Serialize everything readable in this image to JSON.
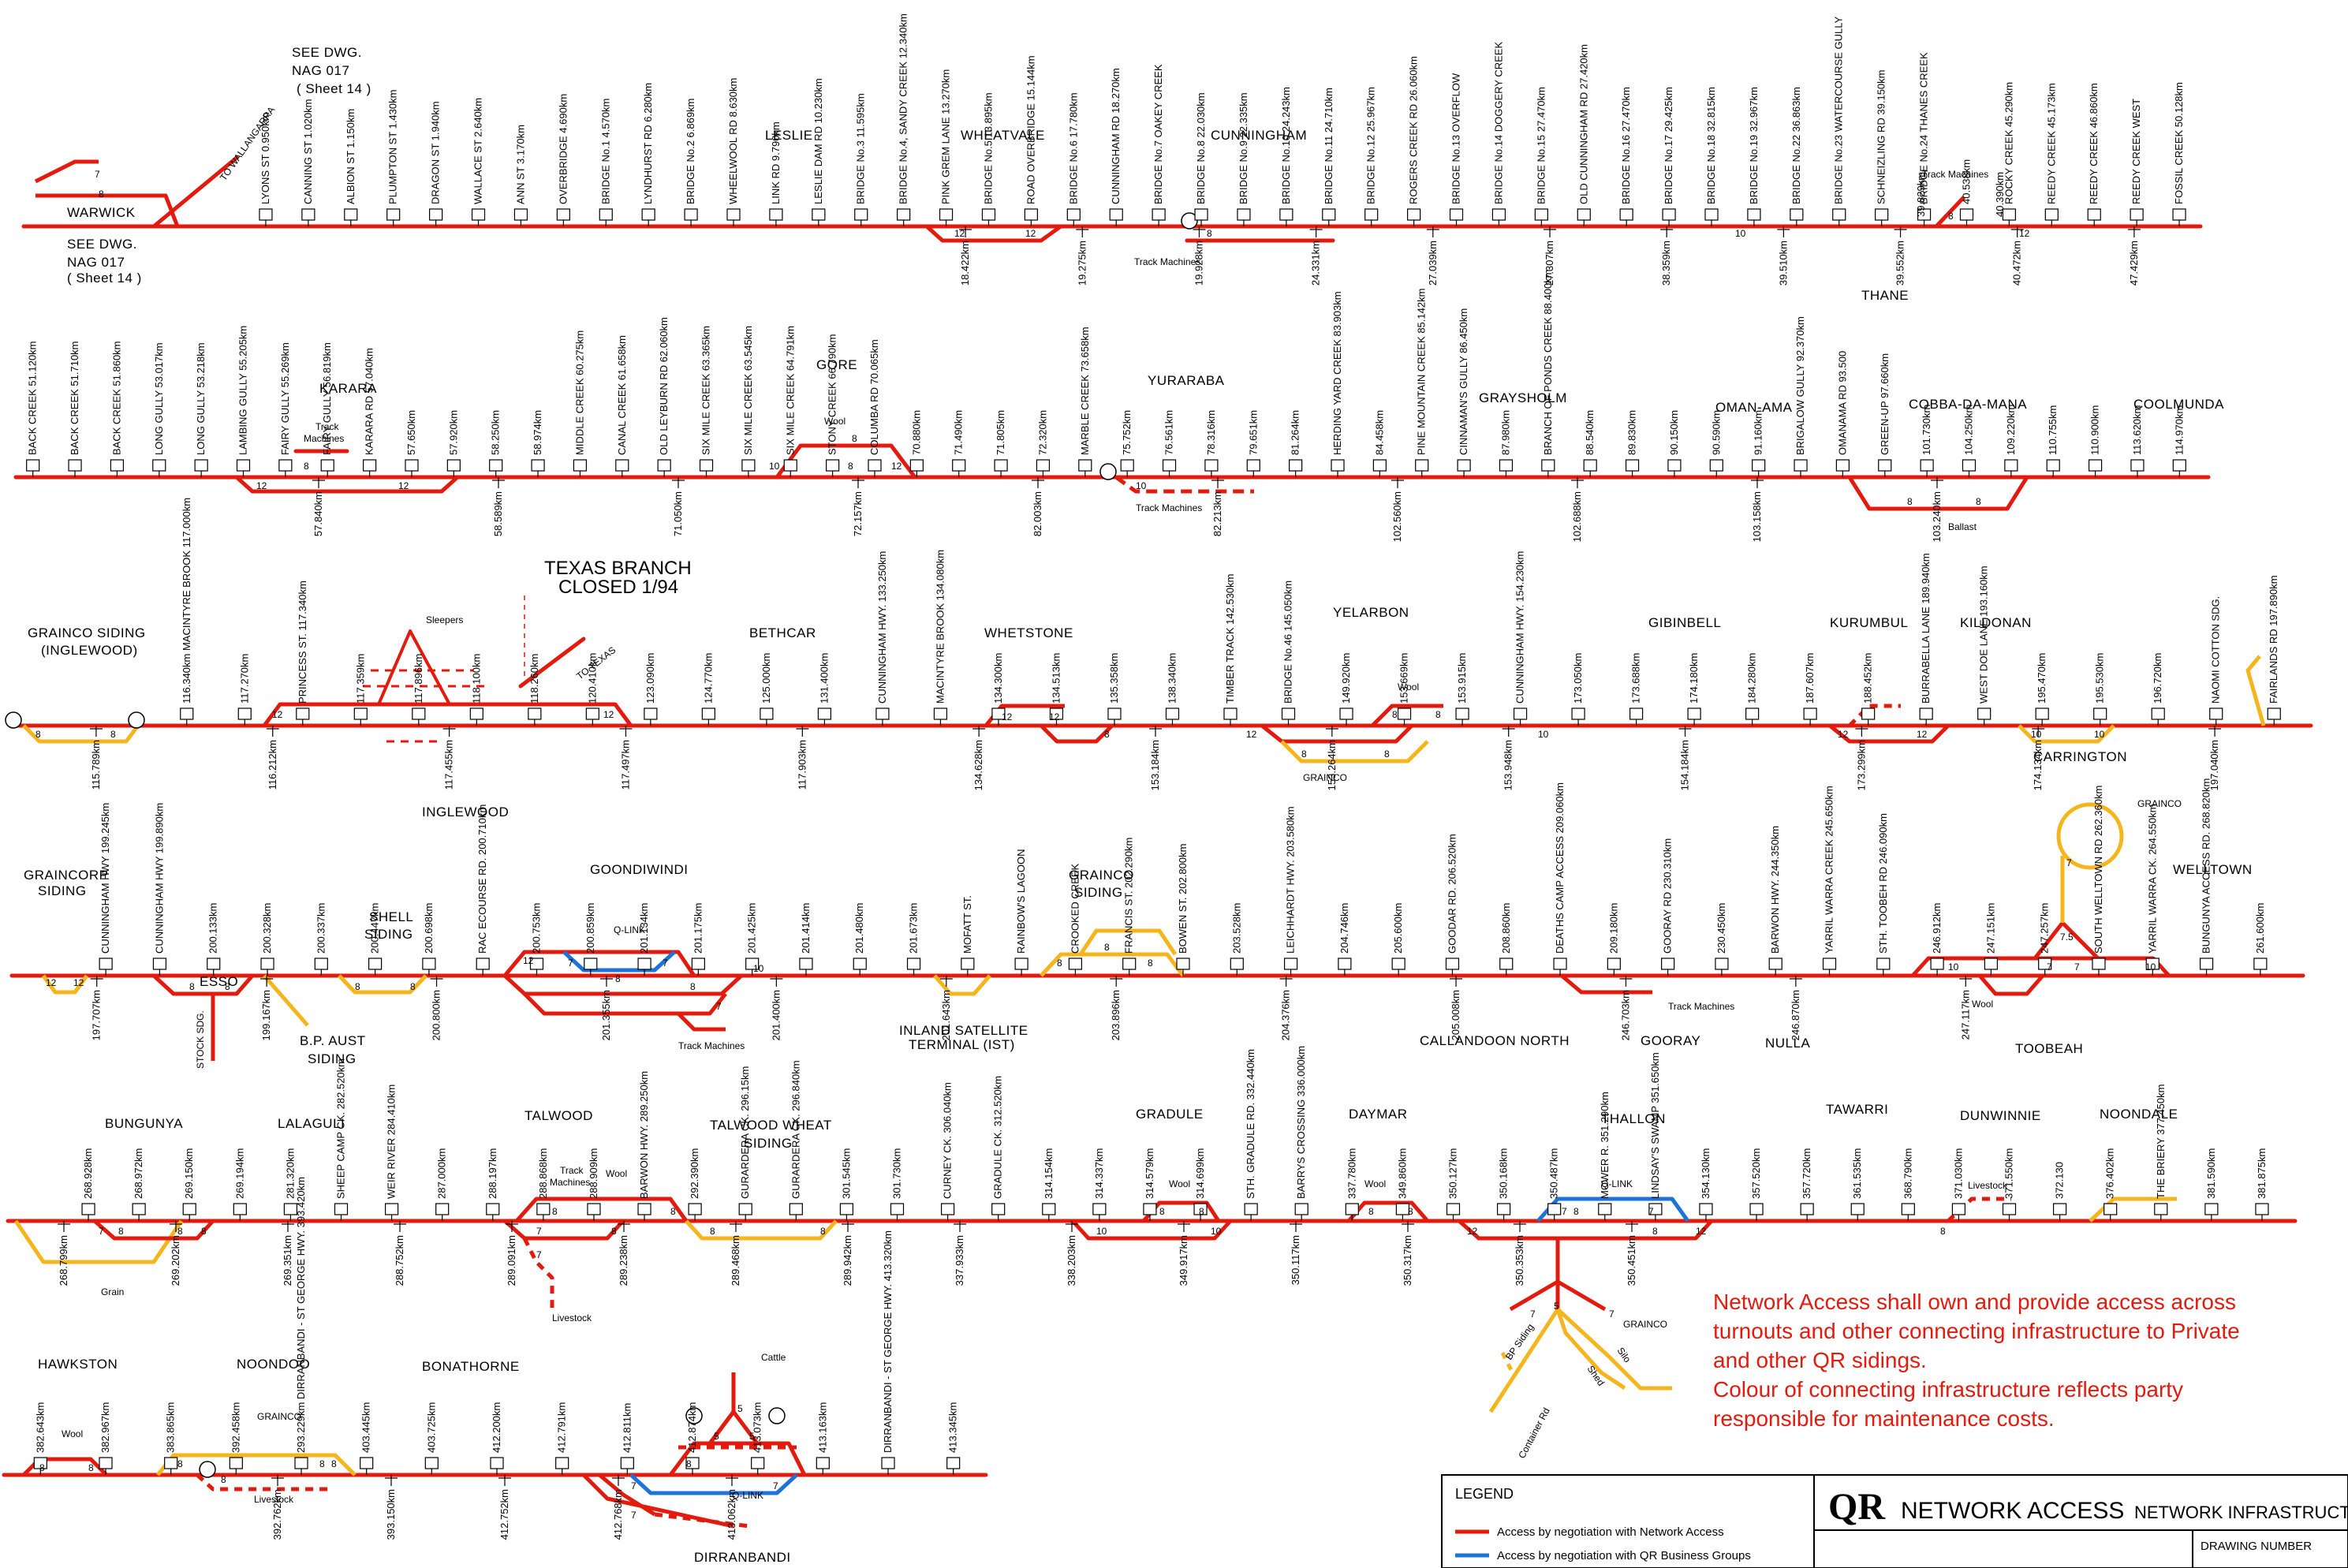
{
  "colors": {
    "network_access": "#e31b0e",
    "qr_business": "#1e73d8",
    "private": "#f5b51c"
  },
  "refs": {
    "see_dwg_top_1": "SEE DWG.",
    "see_dwg_top_2": "NAG 017",
    "see_dwg_top_3": "( Sheet 14 )",
    "see_dwg_bot_1": "SEE DWG.",
    "see_dwg_bot_2": "NAG 017",
    "see_dwg_bot_3": "( Sheet 14 )",
    "to_wallangarra": "TO WALLANGARRA",
    "texas_branch_1": "TEXAS BRANCH",
    "texas_branch_2": "CLOSED 1/94",
    "to_texas": "TO TEXAS"
  },
  "note": {
    "line1": "Network Access shall own and provide access across",
    "line2": "turnouts and other connecting infrastructure to Private",
    "line3": "and other QR sidings.",
    "line4": "Colour of connecting infrastructure reflects party",
    "line5": "responsible for maintenance costs."
  },
  "legend": {
    "title": "LEGEND",
    "item1": "Access by negotiation with Network Access",
    "item2": "Access by negotiation with QR Business Groups"
  },
  "title_block": {
    "qr": "QR",
    "network_access": "NETWORK ACCESS",
    "network_infrastructure": "NETWORK INFRASTRUCTURE",
    "drawing_number": "DRAWING NUMBER"
  },
  "row1": {
    "stations": {
      "warwick": "WARWICK",
      "leslie": "LESLIE",
      "wheatvale": "WHEATVALE",
      "cunningham": "CUNNINGHAM",
      "thane": "THANE"
    },
    "misc": {
      "track_machines_1": "Track Machines",
      "track_machines_2": "Track Machines"
    },
    "features": [
      "LYONS ST 0.950km",
      "CANNING ST 1.020km",
      "ALBION ST 1.150km",
      "PLUMPTON ST 1.430km",
      "DRAGON ST 1.940km",
      "WALLACE ST 2.640km",
      "ANN ST 3.170km",
      "OVERBRIDGE 4.690km",
      "BRIDGE No.1 4.570km",
      "LYNDHURST RD 6.280km",
      "BRIDGE No.2 6.869km",
      "WHEELWOOL RD 8.630km",
      "LINK RD 9.790km",
      "LESLIE DAM RD 10.230km",
      "BRIDGE No.3 11.595km",
      "BRIDGE No.4, SANDY CREEK 12.340km",
      "PINK GREM LANE 13.270km",
      "BRIDGE No.5 13.895km",
      "ROAD OVERBRIDGE 15.144km",
      "BRIDGE No.6 17.780km",
      "CUNNINGHAM RD 18.270km",
      "BRIDGE No.7 OAKEY CREEK",
      "BRIDGE No.8 22.030km",
      "BRIDGE No.9 22.335km",
      "BRIDGE No.10 24.243km",
      "BRIDGE No.11 24.710km",
      "BRIDGE No.12 25.967km",
      "ROGERS CREEK RD 26.060km",
      "BRIDGE No.13 OVERFLOW",
      "BRIDGE No.14 DOGGERY CREEK",
      "BRIDGE No.15 27.470km",
      "OLD CUNNINGHAM RD 27.420km",
      "BRIDGE No.16 27.470km",
      "BRIDGE No.17 29.425km",
      "BRIDGE No.18 32.815km",
      "BRIDGE No.19 32.967km",
      "BRIDGE No.22 36.863km",
      "BRIDGE No.23 WATERCOURSE GULLY",
      "SCHNEIZLING RD 39.150km",
      "BRIDGE No.24 THANES CREEK",
      "40.538km",
      "ROCKY CREEK 45.290km",
      "REEDY CREEK 45.173km",
      "REEDY CREEK 46.860km",
      "REEDY CREEK WEST",
      "FOSSIL CREEK 50.128km"
    ],
    "below": [
      "18.422km",
      "19.275km",
      "19.928km",
      "24.331km",
      "27.039km",
      "27.307km",
      "38.359km",
      "39.510km",
      "39.552km",
      "40.472km",
      "47.429km"
    ],
    "extra_above": [
      "39.829km",
      "40.390km"
    ]
  },
  "row2": {
    "stations": {
      "karara": "KARARA",
      "gore": "GORE",
      "yuraraba": "YURARABA",
      "graysholm": "GRAYSHOLM",
      "oman_ama": "OMAN-AMA",
      "cobba_da_mana": "COBBA-DA-MANA",
      "coolmunda": "COOLMUNDA"
    },
    "misc": {
      "track_machines_a": "Track",
      "track_machines_b": "Machines",
      "wool": "Wool",
      "track_machines_c": "Track Machines",
      "ballast": "Ballast"
    },
    "features": [
      "BACK CREEK 51.120km",
      "BACK CREEK 51.710km",
      "BACK CREEK 51.860km",
      "LONG GULLY 53.017km",
      "LONG GULLY 53.218km",
      "LAMBING GULLY 55.205km",
      "FAIRY GULLY 55.269km",
      "FAIRY GULLY 56.819km",
      "KARARA RD 57.040km",
      "57.650km",
      "57.920km",
      "58.250km",
      "58.974km",
      "MIDDLE CREEK 60.275km",
      "CANAL CREEK 61.658km",
      "OLD LEYBURN RD 62.060km",
      "SIX MILE CREEK 63.365km",
      "SIX MILE CREEK 63.545km",
      "SIX MILE CREEK 64.791km",
      "STONY CREEK 66.790km",
      "COLUMBA RD 70.065km",
      "70.880km",
      "71.490km",
      "71.805km",
      "72.320km",
      "MARBLE CREEK 73.658km",
      "75.752km",
      "76.561km",
      "78.316km",
      "79.651km",
      "81.264km",
      "HERDING YARD CREEK 83.903km",
      "84.458km",
      "PINE MOUNTAIN CREEK 85.142km",
      "CINNAMAN'S GULLY 86.450km",
      "87.980km",
      "BRANCH OF PONDS CREEK 88.400km",
      "88.540km",
      "89.830km",
      "90.150km",
      "90.590km",
      "91.160km",
      "BRIGALOW GULLY 92.370km",
      "OMANAMA RD 93.500",
      "GREEN-UP 97.660km",
      "101.730km",
      "104.250km",
      "109.220km",
      "110.755km",
      "110.900km",
      "113.620km",
      "114.970km"
    ],
    "below": [
      "57.840km",
      "58.589km",
      "71.050km",
      "72.157km",
      "82.003km",
      "82.213km",
      "102.560km",
      "102.688km",
      "103.158km",
      "103.240km"
    ]
  },
  "row3": {
    "stations": {
      "grainco_siding": "GRAINCO SIDING",
      "inglewood_paren": "(INGLEWOOD)",
      "inglewood": "INGLEWOOD",
      "bethcar": "BETHCAR",
      "whetstone": "WHETSTONE",
      "yelarbon": "YELARBON",
      "gibinbell": "GIBINBELL",
      "kurumbul": "KURUMBUL",
      "kildonan": "KILDONAN",
      "carrington": "CARRINGTON"
    },
    "misc": {
      "sleepers": "Sleepers",
      "wool": "Wool",
      "grainco": "GRAINCO",
      "grainco2": "GRAINCO"
    },
    "features": [
      "116.340km MACINTYRE BROOK 117.000km",
      "117.270km",
      "PRINCESS ST. 117.340km",
      "117.359km",
      "117.896km",
      "118.100km",
      "118.260km",
      "120.410km",
      "123.090km",
      "124.770km",
      "125.000km",
      "131.400km",
      "CUNNINGHAM HWY. 133.250km",
      "MACINTYRE BROOK 134.080km",
      "134.300km",
      "134.513km",
      "135.358km",
      "138.340km",
      "TIMBER TRACK 142.530km",
      "BRIDGE No.46 145.050km",
      "149.920km",
      "153.669km",
      "153.915km",
      "CUNNINGHAM HWY. 154.230km",
      "173.050km",
      "173.688km",
      "174.180km",
      "184.280km",
      "187.607km",
      "188.452km",
      "BURRABELLA LANE 189.940km",
      "WEST DOE LANE 193.160km",
      "195.470km",
      "195.530km",
      "196.720km",
      "NAOMI COTTON SDG.",
      "FAIRLANDS RD 197.890km"
    ],
    "below": [
      "115.789km",
      "116.212km",
      "117.455km",
      "117.497km",
      "117.903km",
      "134.628km",
      "153.184km",
      "153.264km",
      "153.948km",
      "154.184km",
      "173.299km",
      "174.134km",
      "197.040km"
    ]
  },
  "row4": {
    "stations": {
      "graincorp_1": "GRAINCORP",
      "graincorp_2": "SIDING",
      "goondiwindi": "GOONDIWINDI",
      "shell_1": "SHELL",
      "shell_2": "SIDING",
      "grainco_1": "GRAINCO",
      "grainco_2": "SIDING",
      "welltown": "WELLTOWN",
      "callandoon_north": "CALLANDOON NORTH",
      "gooray": "GOORAY",
      "nulla": "NULLA",
      "toobeah": "TOOBEAH"
    },
    "misc": {
      "esso": "ESSO",
      "stock_sdg": "STOCK SDG.",
      "bp_aust_1": "B.P. AUST",
      "bp_aust_2": "SIDING",
      "q_link": "Q-LINK",
      "track_machines": "Track Machines",
      "inland_1": "INLAND SATELLITE",
      "inland_2": "TERMINAL (IST)",
      "track_machines_2": "Track Machines",
      "wool": "Wool",
      "grainco": "GRAINCO"
    },
    "features": [
      "CUNNINGHAM HWY 199.245km",
      "CUNNINGHAM HWY 199.890km",
      "200.133km",
      "200.328km",
      "200.337km",
      "200.447km",
      "200.698km",
      "RAC ECOURSE RD. 200.710km",
      "200.753km",
      "200.859km",
      "201.134km",
      "201.175km",
      "201.425km",
      "201.414km",
      "201.480km",
      "201.673km",
      "MOFATT ST.",
      "RAINBOW'S LAGOON",
      "CROOKED CREEK",
      "FRANCIS ST. 202.290km",
      "BOWEN ST. 202.800km",
      "203.528km",
      "LEICHHARDT HWY. 203.580km",
      "204.746km",
      "205.600km",
      "GOODAR RD. 206.520km",
      "208.860km",
      "DEATHS CAMP ACCESS 209.060km",
      "209.180km",
      "GOORAY RD 230.310km",
      "230.450km",
      "BARWON HWY. 244.350km",
      "YARRIL WARRA CREEK 245.650km",
      "STH. TOOBEH RD 246.090km",
      "246.912km",
      "247.151km",
      "247.257km",
      "SOUTH WELLTOWN RD 262.360km",
      "YARRIL WARRA CK. 264.550km",
      "BUNGUNYA ACCESS RD. 268.820km",
      "261.600km"
    ],
    "below": [
      "197.707km",
      "199.167km",
      "200.800km",
      "201.355km",
      "201.400km",
      "201.643km",
      "203.896km",
      "204.376km",
      "205.008km",
      "246.703km",
      "246.870km",
      "247.117km"
    ]
  },
  "row5": {
    "stations": {
      "bungunya": "BUNGUNYA",
      "lalaguli": "LALAGULI",
      "talwood": "TALWOOD",
      "talwood_wheat_1": "TALWOOD WHEAT",
      "talwood_wheat_2": "SIDING",
      "gradule": "GRADULE",
      "daymar": "DAYMAR",
      "thallon": "THALLON",
      "tawarri": "TAWARRI",
      "dunwinnie": "DUNWINNIE",
      "noondale": "NOONDALE"
    },
    "misc": {
      "grain": "Grain",
      "track_machines_a": "Track",
      "track_machines_b": "Machines",
      "wool": "Wool",
      "livestock": "Livestock",
      "wool2": "Wool",
      "wool3": "Wool",
      "q_link": "Q-LINK",
      "grainco": "GRAINCO",
      "livestock2": "Livestock",
      "bp_siding": "BP Siding",
      "shed": "Shed",
      "silo": "Silo",
      "container_rd": "Container Rd"
    },
    "features": [
      "268.928km",
      "268.972km",
      "269.150km",
      "269.194km",
      "281.320km",
      "SHEEP CAMP CK. 282.520km",
      "WEIR RIVER 284.410km",
      "287.000km",
      "288.197km",
      "288.868km",
      "288.909km",
      "BARWON HWY. 289.250km",
      "292.390km",
      "GURARDERA CK. 296.15km",
      "GURARDERA CK. 296.840km",
      "301.545km",
      "301.730km",
      "CURNEY CK. 306.040km",
      "GRADULE CK. 312.520km",
      "314.154km",
      "314.337km",
      "314.579km",
      "314.699km",
      "STH. GRADULE RD. 332.440km",
      "BARRYS CROSSING 336.000km",
      "337.780km",
      "349.860km",
      "350.127km",
      "350.168km",
      "350.487km",
      "MOWER R. 351.290km",
      "LINDSAY'S SWAMP 351.650km",
      "354.130km",
      "357.520km",
      "357.720km",
      "361.535km",
      "368.790km",
      "371.030km",
      "371.550km",
      "372.130",
      "376.402km",
      "THE BRIERY 377.450km",
      "381.590km",
      "381.875km"
    ],
    "below": [
      "268.799km",
      "269.202km",
      "269.351km",
      "288.752km",
      "289.091km",
      "289.238km",
      "289.468km",
      "289.942km",
      "337.933km",
      "338.203km",
      "349.917km",
      "350.117km",
      "350.317km",
      "350.353km",
      "350.451km"
    ]
  },
  "row6": {
    "stations": {
      "hawkston": "HAWKSTON",
      "noondoo": "NOONDOO",
      "bonathorne": "BONATHORNE",
      "dirranbandi": "DIRRANBANDI"
    },
    "misc": {
      "wool": "Wool",
      "grainco": "GRAINCO",
      "livestock": "Livestock",
      "cattle": "Cattle",
      "q_link": "Q-LINK"
    },
    "features": [
      "382.643km",
      "382.967km",
      "383.865km",
      "392.458km",
      "293.229km DIRRANBANDI - ST GEORGE HWY. 393.420km",
      "403.445km",
      "403.725km",
      "412.200km",
      "412.791km",
      "412.811km",
      "412.874km",
      "413.073km",
      "413.163km",
      "DIRRANBANDI - ST GEORGE HWY. 413.320km",
      "413.345km"
    ],
    "below": [
      "392.762km",
      "393.150km",
      "412.752km",
      "412.768km",
      "413.062km"
    ]
  }
}
